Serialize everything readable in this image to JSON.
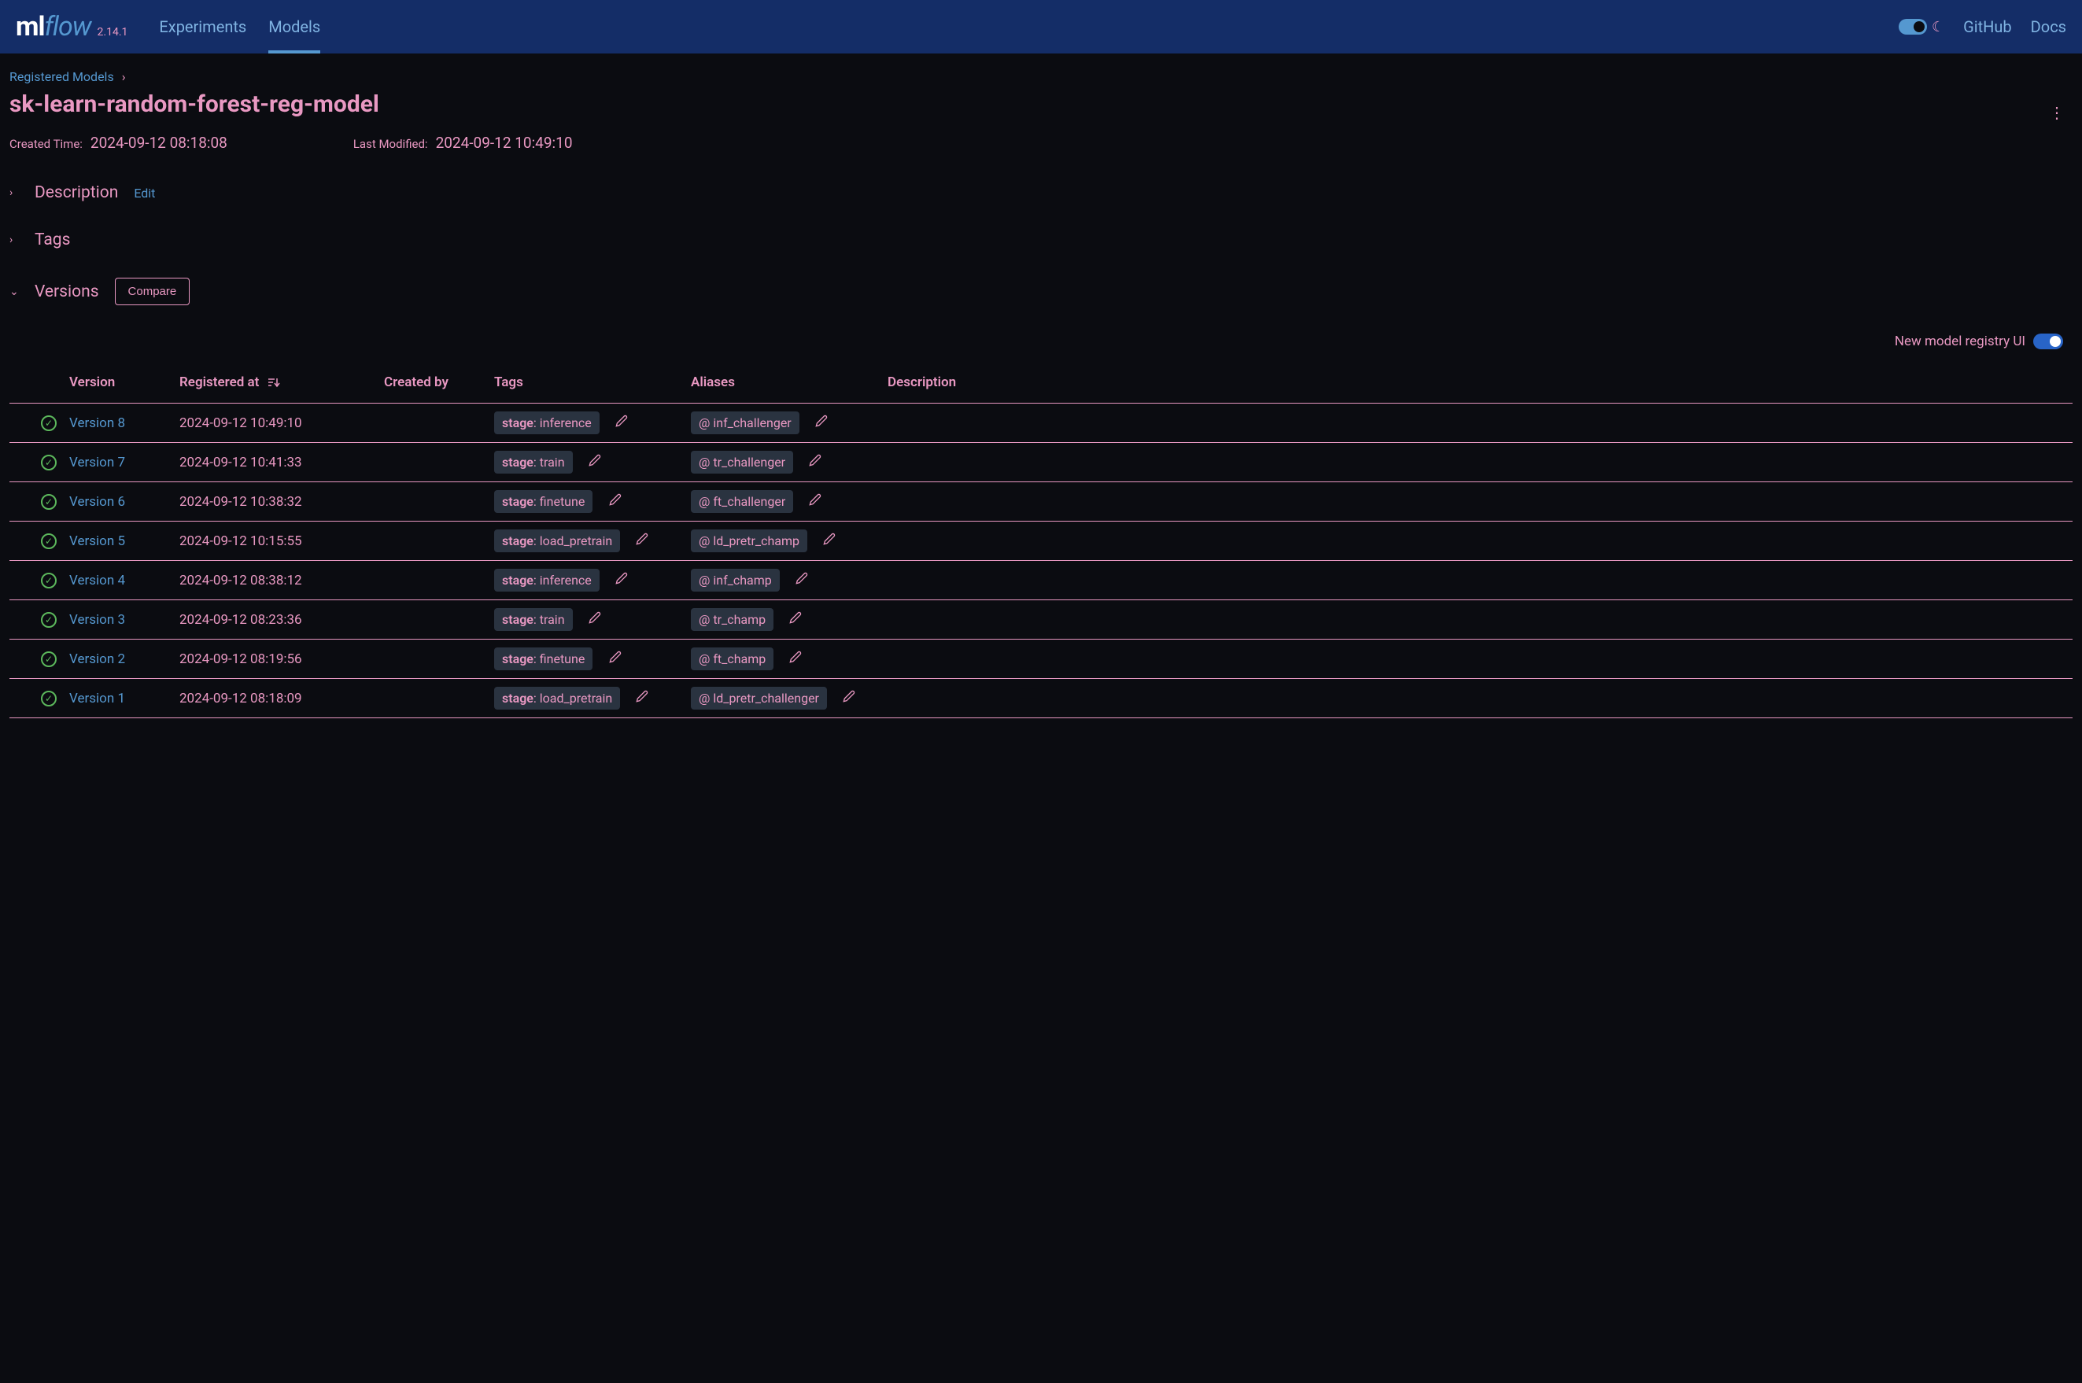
{
  "header": {
    "logo": {
      "prefix": "ml",
      "suffix": "flow",
      "version": "2.14.1"
    },
    "tabs": {
      "experiments": "Experiments",
      "models": "Models"
    },
    "links": {
      "github": "GitHub",
      "docs": "Docs"
    }
  },
  "breadcrumb": {
    "root": "Registered Models"
  },
  "model": {
    "name": "sk-learn-random-forest-reg-model",
    "created_label": "Created Time:",
    "created_value": "2024-09-12 08:18:08",
    "modified_label": "Last Modified:",
    "modified_value": "2024-09-12 10:49:10"
  },
  "sections": {
    "description": "Description",
    "edit": "Edit",
    "tags": "Tags",
    "versions": "Versions",
    "compare": "Compare"
  },
  "registry_toggle": "New model registry UI",
  "table": {
    "headers": {
      "version": "Version",
      "registered": "Registered at",
      "created_by": "Created by",
      "tags": "Tags",
      "aliases": "Aliases",
      "description": "Description"
    },
    "rows": [
      {
        "version": "Version 8",
        "registered": "2024-09-12 10:49:10",
        "tag_key": "stage",
        "tag_val": ": inference",
        "alias": "@ inf_challenger"
      },
      {
        "version": "Version 7",
        "registered": "2024-09-12 10:41:33",
        "tag_key": "stage",
        "tag_val": ": train",
        "alias": "@ tr_challenger"
      },
      {
        "version": "Version 6",
        "registered": "2024-09-12 10:38:32",
        "tag_key": "stage",
        "tag_val": ": finetune",
        "alias": "@ ft_challenger"
      },
      {
        "version": "Version 5",
        "registered": "2024-09-12 10:15:55",
        "tag_key": "stage",
        "tag_val": ": load_pretrain",
        "alias": "@ ld_pretr_champ"
      },
      {
        "version": "Version 4",
        "registered": "2024-09-12 08:38:12",
        "tag_key": "stage",
        "tag_val": ": inference",
        "alias": "@ inf_champ"
      },
      {
        "version": "Version 3",
        "registered": "2024-09-12 08:23:36",
        "tag_key": "stage",
        "tag_val": ": train",
        "alias": "@ tr_champ"
      },
      {
        "version": "Version 2",
        "registered": "2024-09-12 08:19:56",
        "tag_key": "stage",
        "tag_val": ": finetune",
        "alias": "@ ft_champ"
      },
      {
        "version": "Version 1",
        "registered": "2024-09-12 08:18:09",
        "tag_key": "stage",
        "tag_val": ": load_pretrain",
        "alias": "@ ld_pretr_challenger"
      }
    ]
  },
  "colors": {
    "background": "#0b0c11",
    "header_bg": "#142d67",
    "accent_pink": "#e998c2",
    "accent_blue": "#5598d0",
    "pill_bg": "#2a3340",
    "status_green": "#5cb85c",
    "toggle_blue": "#2864c7"
  }
}
